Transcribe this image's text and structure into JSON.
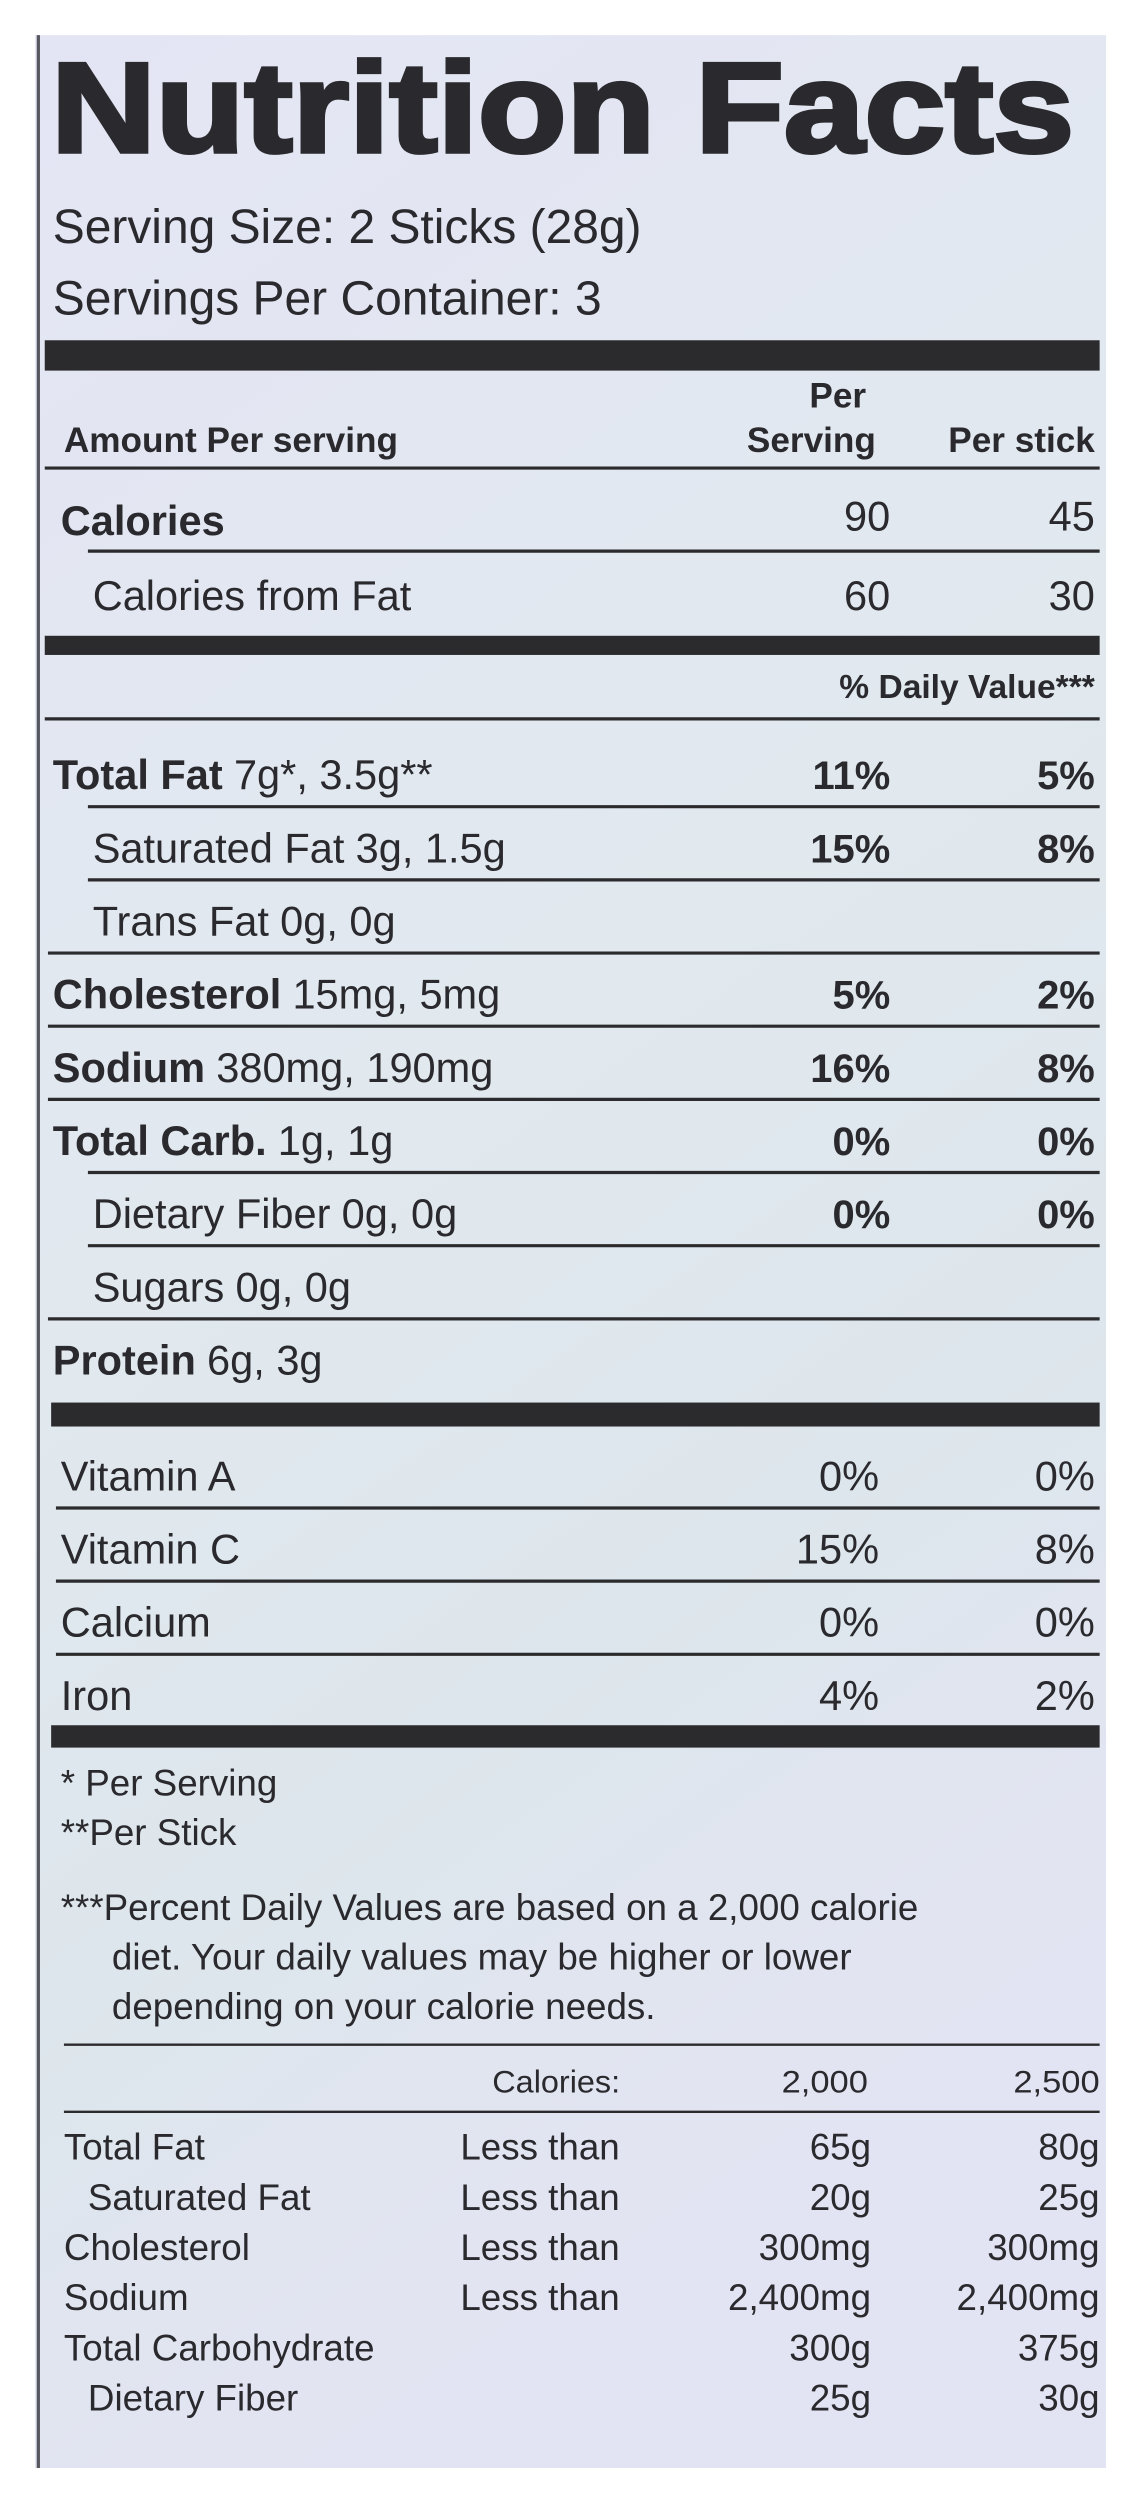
{
  "title": "Nutrition Facts",
  "serving_size": "Serving Size: 2 Sticks (28g)",
  "servings_per_container": "Servings Per Container: 3",
  "columns": {
    "amount_per": "Amount Per serving",
    "per_serving": "Per Serving",
    "per_stick": "Per stick"
  },
  "calories": {
    "label": "Calories",
    "per_serving": "90",
    "per_stick": "45"
  },
  "calories_from_fat": {
    "label": "Calories from Fat",
    "per_serving": "60",
    "per_stick": "30"
  },
  "daily_value_heading": "% Daily Value***",
  "nutrients": [
    {
      "name": "Total Fat",
      "amount": "7g*, 3.5g**",
      "per_serving": "11%",
      "per_stick": "5%",
      "sub": [
        {
          "name": "Saturated Fat",
          "amount": "3g, 1.5g",
          "per_serving": "15%",
          "per_stick": "8%"
        },
        {
          "name": "Trans Fat",
          "amount": "0g, 0g"
        }
      ]
    },
    {
      "name": "Cholesterol",
      "amount": "15mg, 5mg",
      "per_serving": "5%",
      "per_stick": "2%"
    },
    {
      "name": "Sodium",
      "amount": "380mg, 190mg",
      "per_serving": "16%",
      "per_stick": "8%"
    },
    {
      "name": "Total Carb.",
      "amount": "1g, 1g",
      "per_serving": "0%",
      "per_stick": "0%",
      "sub": [
        {
          "name": "Dietary Fiber",
          "amount": "0g, 0g",
          "per_serving": "0%",
          "per_stick": "0%"
        },
        {
          "name": "Sugars",
          "amount": "0g, 0g"
        }
      ]
    },
    {
      "name": "Protein",
      "amount": "6g, 3g"
    }
  ],
  "vitamins": [
    {
      "name": "Vitamin A",
      "per_serving": "0%",
      "per_stick": "0%"
    },
    {
      "name": "Vitamin C",
      "per_serving": "15%",
      "per_stick": "8%"
    },
    {
      "name": "Calcium",
      "per_serving": "0%",
      "per_stick": "0%"
    },
    {
      "name": "Iron",
      "per_serving": "4%",
      "per_stick": "2%"
    }
  ],
  "footnotes": [
    "* Per Serving",
    "**Per Stick"
  ],
  "daily_value_note": [
    "***Percent Daily Values are based on a 2,000 calorie",
    "diet. Your daily values may be higher or lower",
    "depending on your calorie needs."
  ],
  "reference_table": {
    "header": [
      "Calories:",
      "2,000",
      "2,500"
    ],
    "rows": [
      {
        "name": "Total Fat",
        "limit": "Less than",
        "cal_2000": "65g",
        "cal_2500": "80g",
        "sub": [
          {
            "name": "Saturated Fat",
            "limit": "Less than",
            "cal_2000": "20g",
            "cal_2500": "25g"
          }
        ]
      },
      {
        "name": "Cholesterol",
        "limit": "Less than",
        "cal_2000": "300mg",
        "cal_2500": "300mg"
      },
      {
        "name": "Sodium",
        "limit": "Less than",
        "cal_2000": "2,400mg",
        "cal_2500": "2,400mg"
      },
      {
        "name": "Total Carbohydrate",
        "cal_2000": "300g",
        "cal_2500": "375g",
        "sub": [
          {
            "name": "Dietary Fiber",
            "cal_2000": "25g",
            "cal_2500": "30g"
          }
        ]
      }
    ]
  }
}
